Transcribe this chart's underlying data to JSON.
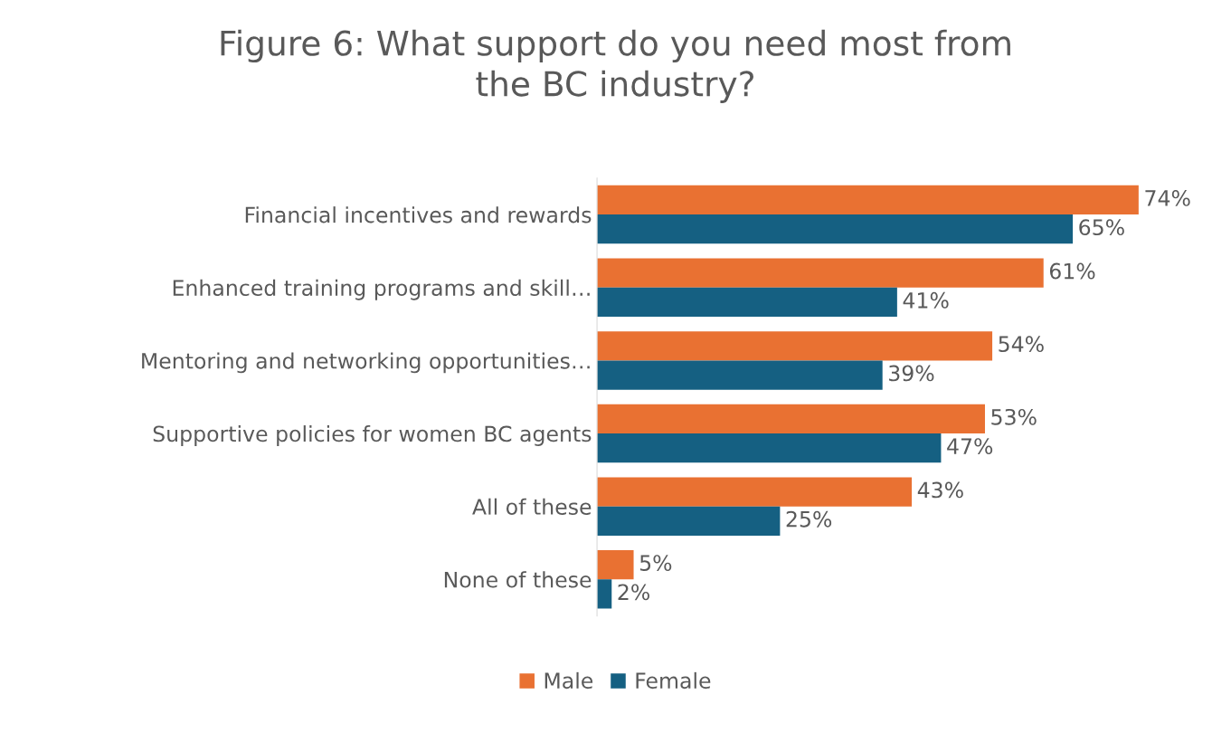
{
  "chart_data": {
    "type": "bar",
    "orientation": "horizontal",
    "title": "Figure 6: What support do you need most from\nthe BC industry?",
    "categories": [
      "Financial incentives and rewards",
      "Enhanced training programs and skill…",
      "Mentoring and networking opportunities…",
      "Supportive policies for women BC agents",
      "All of these",
      "None of these"
    ],
    "series": [
      {
        "name": "Male",
        "color": "#e97132",
        "values": [
          74,
          61,
          54,
          53,
          43,
          5
        ],
        "value_labels": [
          "74%",
          "61%",
          "54%",
          "53%",
          "43%",
          "5%"
        ]
      },
      {
        "name": "Female",
        "color": "#156082",
        "values": [
          65,
          41,
          39,
          47,
          25,
          2
        ],
        "value_labels": [
          "65%",
          "41%",
          "39%",
          "47%",
          "25%",
          "2%"
        ]
      }
    ],
    "legend": "bottom",
    "grid": false
  }
}
